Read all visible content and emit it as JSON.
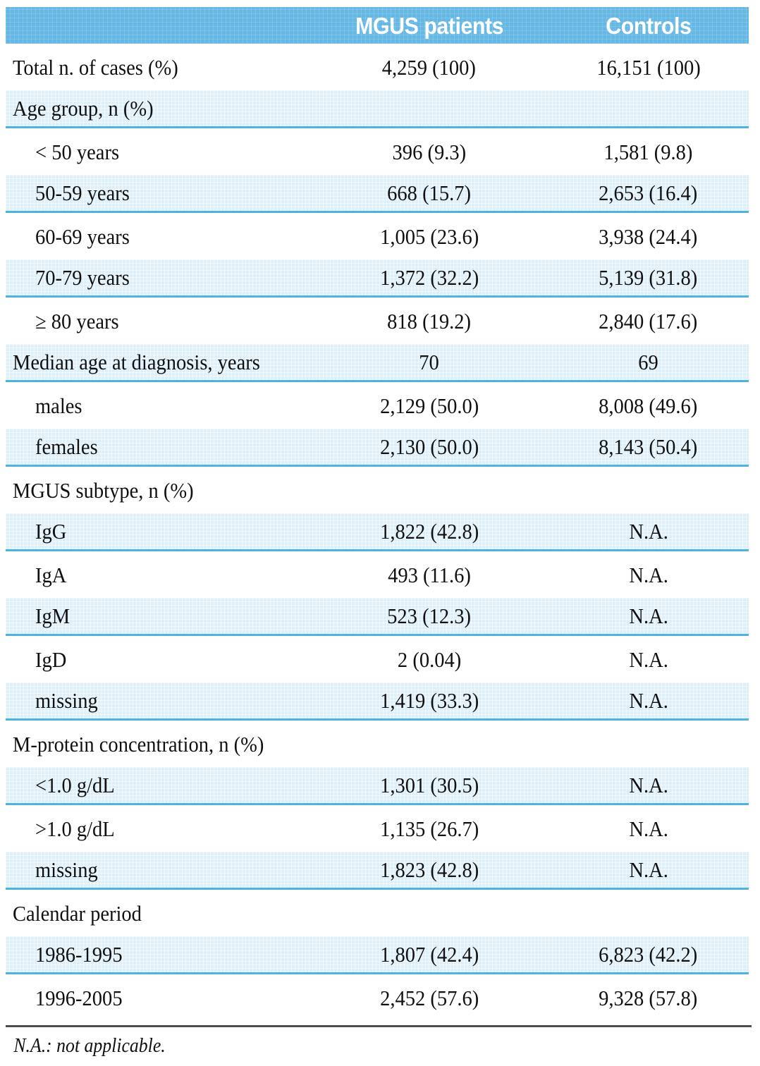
{
  "table": {
    "columns": [
      "",
      "MGUS patients",
      "Controls"
    ],
    "rows": [
      {
        "label": "Total n. of cases (%)",
        "mgus": "4,259 (100)",
        "controls": "16,151 (100)",
        "indent": false,
        "shade": "white"
      },
      {
        "label": "Age group, n (%)",
        "mgus": "",
        "controls": "",
        "indent": false,
        "shade": "blue"
      },
      {
        "label": "< 50 years",
        "mgus": "396 (9.3)",
        "controls": "1,581 (9.8)",
        "indent": true,
        "shade": "white"
      },
      {
        "label": "50-59 years",
        "mgus": "668 (15.7)",
        "controls": "2,653 (16.4)",
        "indent": true,
        "shade": "blue"
      },
      {
        "label": "60-69 years",
        "mgus": "1,005 (23.6)",
        "controls": "3,938 (24.4)",
        "indent": true,
        "shade": "white"
      },
      {
        "label": "70-79 years",
        "mgus": "1,372 (32.2)",
        "controls": "5,139 (31.8)",
        "indent": true,
        "shade": "blue"
      },
      {
        "label": "≥ 80 years",
        "mgus": "818 (19.2)",
        "controls": "2,840 (17.6)",
        "indent": true,
        "shade": "white"
      },
      {
        "label": "Median age at diagnosis, years",
        "mgus": "70",
        "controls": "69",
        "indent": false,
        "shade": "blue"
      },
      {
        "label": "males",
        "mgus": "2,129 (50.0)",
        "controls": "8,008 (49.6)",
        "indent": true,
        "shade": "white"
      },
      {
        "label": "females",
        "mgus": "2,130 (50.0)",
        "controls": "8,143 (50.4)",
        "indent": true,
        "shade": "blue"
      },
      {
        "label": "MGUS subtype, n (%)",
        "mgus": "",
        "controls": "",
        "indent": false,
        "shade": "white"
      },
      {
        "label": "IgG",
        "mgus": "1,822 (42.8)",
        "controls": "N.A.",
        "indent": true,
        "shade": "blue"
      },
      {
        "label": "IgA",
        "mgus": "493 (11.6)",
        "controls": "N.A.",
        "indent": true,
        "shade": "white"
      },
      {
        "label": "IgM",
        "mgus": "523 (12.3)",
        "controls": "N.A.",
        "indent": true,
        "shade": "blue"
      },
      {
        "label": "IgD",
        "mgus": "2 (0.04)",
        "controls": "N.A.",
        "indent": true,
        "shade": "white"
      },
      {
        "label": "missing",
        "mgus": "1,419 (33.3)",
        "controls": "N.A.",
        "indent": true,
        "shade": "blue"
      },
      {
        "label": "M-protein concentration, n (%)",
        "mgus": "",
        "controls": "",
        "indent": false,
        "shade": "white"
      },
      {
        "label": "<1.0 g/dL",
        "mgus": "1,301 (30.5)",
        "controls": "N.A.",
        "indent": true,
        "shade": "blue"
      },
      {
        "label": ">1.0 g/dL",
        "mgus": "1,135 (26.7)",
        "controls": "N.A.",
        "indent": true,
        "shade": "white"
      },
      {
        "label": "missing",
        "mgus": "1,823 (42.8)",
        "controls": "N.A.",
        "indent": true,
        "shade": "blue"
      },
      {
        "label": "Calendar period",
        "mgus": "",
        "controls": "",
        "indent": false,
        "shade": "white"
      },
      {
        "label": "1986-1995",
        "mgus": "1,807 (42.4)",
        "controls": "6,823 (42.2)",
        "indent": true,
        "shade": "blue"
      },
      {
        "label": "1996-2005",
        "mgus": "2,452 (57.6)",
        "controls": "9,328 (57.8)",
        "indent": true,
        "shade": "white"
      }
    ]
  },
  "footnote": "N.A.: not applicable.",
  "colors": {
    "header_bg": "#66B8E4",
    "header_text": "#FFFFFF",
    "row_blue_bg": "#DDF0FA",
    "divider_blue": "#4BB2E3",
    "bottom_rule": "#4D4D4D",
    "body_text": "#101010"
  }
}
